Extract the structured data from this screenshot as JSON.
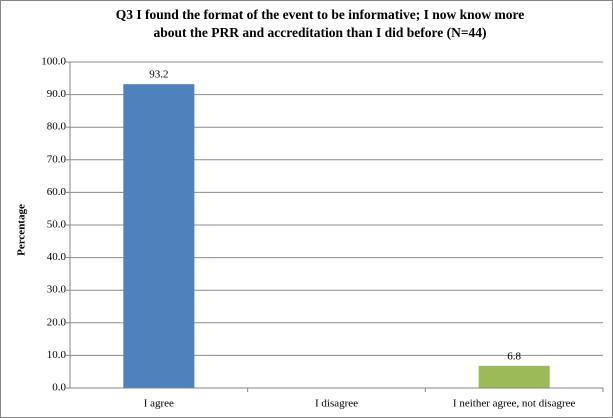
{
  "chart_data": {
    "type": "bar",
    "title": [
      "Q3 I found the format of the event to be informative; I now know more",
      "about the PRR and accreditation than I did before (N=44)"
    ],
    "y_label": "Percentage",
    "categories": [
      "I agree",
      "I disagree",
      "I neither agree, not disagree"
    ],
    "values": [
      93.2,
      0,
      6.8
    ],
    "colors": [
      "#4f81bd",
      "#4f81bd",
      "#9bbb59"
    ],
    "ylim": [
      0,
      100
    ],
    "yticks": [
      {
        "value": 0,
        "label": "0.0"
      },
      {
        "value": 10,
        "label": "10.0"
      },
      {
        "value": 20,
        "label": "20.0"
      },
      {
        "value": 30,
        "label": "30.0"
      },
      {
        "value": 40,
        "label": "40.0"
      },
      {
        "value": 50,
        "label": "50.0"
      },
      {
        "value": 60,
        "label": "60.0"
      },
      {
        "value": 70,
        "label": "70.0"
      },
      {
        "value": 80,
        "label": "80.0"
      },
      {
        "value": 90,
        "label": "90.0"
      },
      {
        "value": 100,
        "label": "100.0"
      }
    ],
    "grid": true
  }
}
